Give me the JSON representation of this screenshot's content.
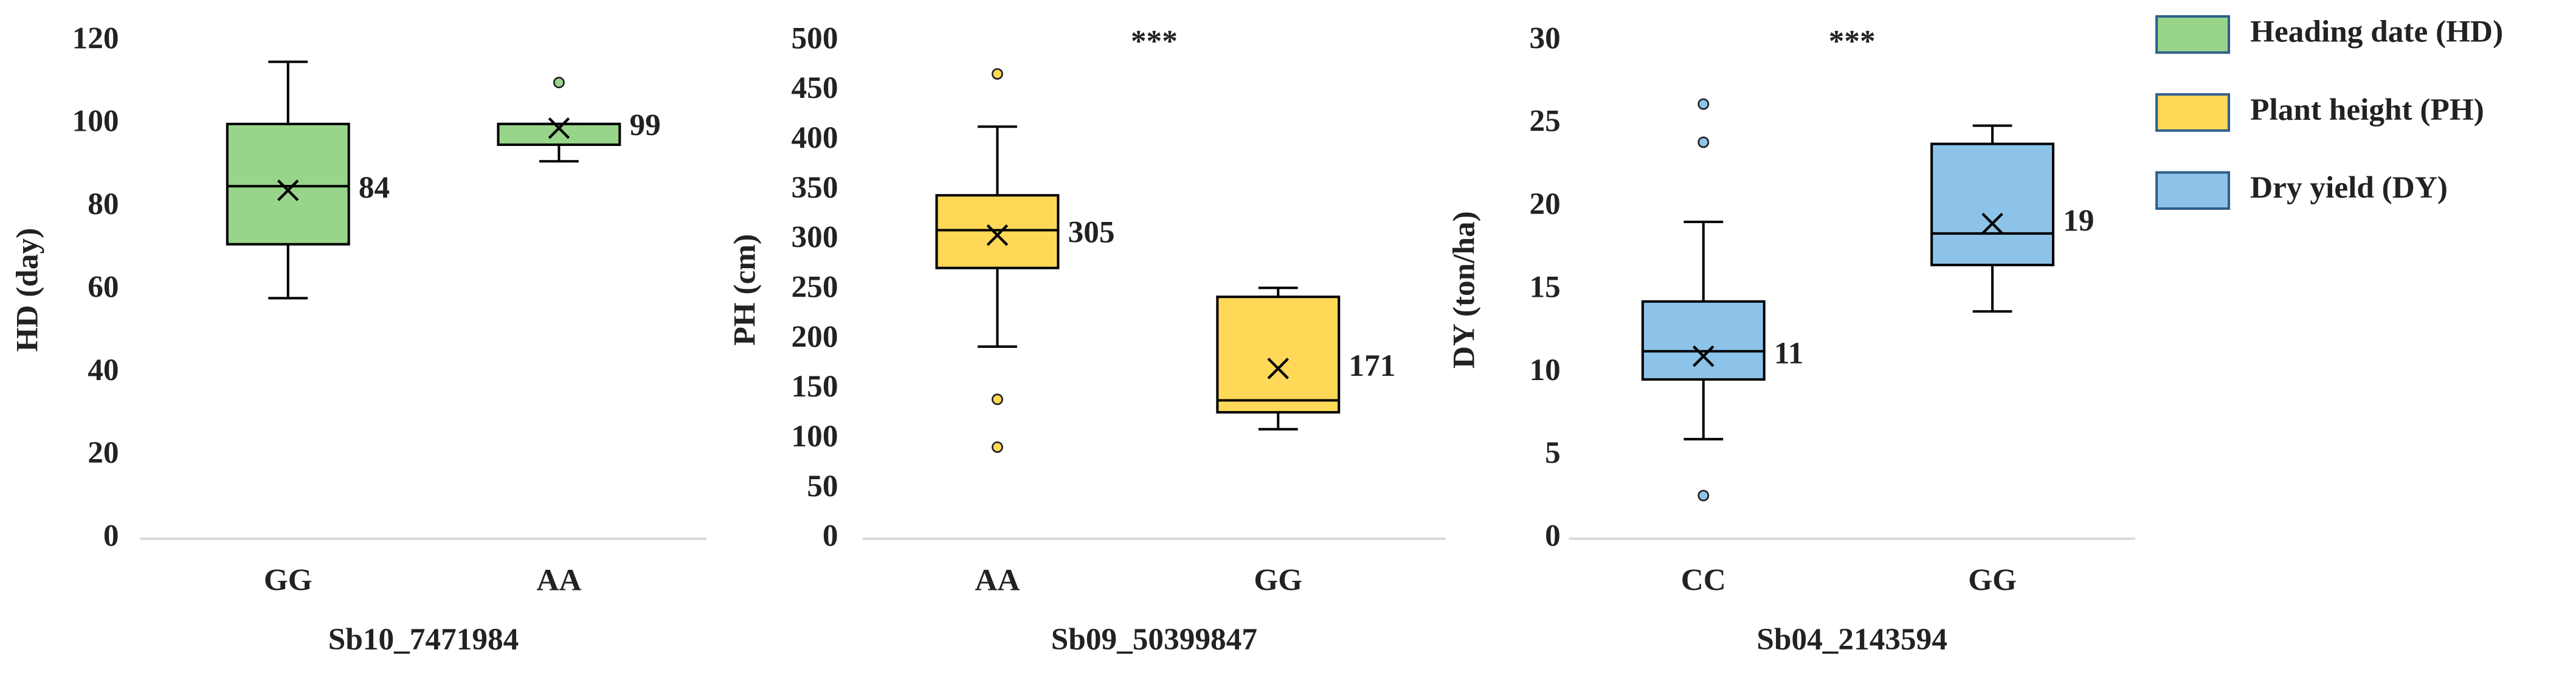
{
  "chart_data": [
    {
      "type": "box",
      "name": "Heading date (HD)",
      "ylabel": "HD (day)",
      "xlabel": "Sb10_7471984",
      "color": "#98d58a",
      "categories": [
        "GG",
        "AA"
      ],
      "ylim": [
        0,
        120
      ],
      "yticks": [
        0,
        20,
        40,
        60,
        80,
        100,
        120
      ],
      "boxes": [
        {
          "min": 58,
          "q1": 71,
          "median": 85,
          "q3": 100,
          "max": 115,
          "mean": 84,
          "outliers": []
        },
        {
          "min": 91,
          "q1": 95,
          "median": 100,
          "q3": 100,
          "max": 100,
          "mean": 99,
          "outliers": [
            110
          ]
        }
      ]
    },
    {
      "type": "box",
      "name": "Plant height (PH)",
      "ylabel": "PH (cm)",
      "xlabel": "Sb09_50399847",
      "color": "#ffd858",
      "annotation": "***",
      "categories": [
        "AA",
        "GG"
      ],
      "ylim": [
        0,
        500
      ],
      "yticks": [
        0,
        50,
        100,
        150,
        200,
        250,
        300,
        350,
        400,
        450,
        500
      ],
      "boxes": [
        {
          "min": 193,
          "q1": 272,
          "median": 310,
          "q3": 345,
          "max": 414,
          "mean": 305,
          "outliers": [
            467,
            140,
            92
          ]
        },
        {
          "min": 110,
          "q1": 127,
          "median": 139,
          "q3": 243,
          "max": 252,
          "mean": 171,
          "outliers": []
        }
      ]
    },
    {
      "type": "box",
      "name": "Dry yield (DY)",
      "ylabel": "DY (ton/ha)",
      "xlabel": "Sb04_2143594",
      "color": "#8dc3e8",
      "annotation": "***",
      "categories": [
        "CC",
        "GG"
      ],
      "ylim": [
        0,
        30
      ],
      "yticks": [
        0,
        5,
        10,
        15,
        20,
        25,
        30
      ],
      "boxes": [
        {
          "min": 6,
          "q1": 9.6,
          "median": 11.3,
          "q3": 14.3,
          "max": 19.1,
          "mean": 11,
          "outliers": [
            26.2,
            23.9,
            2.6
          ]
        },
        {
          "min": 13.7,
          "q1": 16.5,
          "median": 18.4,
          "q3": 23.8,
          "max": 24.9,
          "mean": 19,
          "outliers": []
        }
      ]
    }
  ]
}
